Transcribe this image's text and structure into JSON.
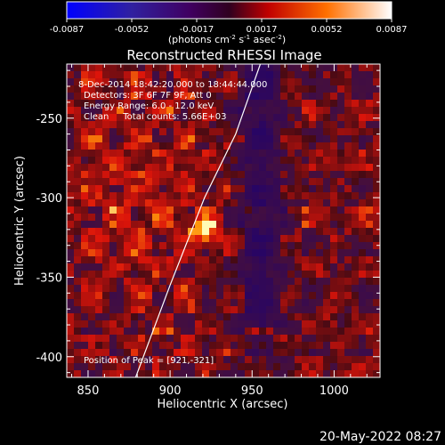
{
  "colorbar": {
    "ticks": [
      "-0.0087",
      "-0.0052",
      "-0.0017",
      "0.0017",
      "0.0052",
      "0.0087"
    ],
    "units_html": "(photons cm<tspan baseline-shift='super' font-size='7'>-2</tspan> s<tspan baseline-shift='super' font-size='7'>-1</tspan> asec<tspan baseline-shift='super' font-size='7'>-2</tspan>)"
  },
  "chart_data": {
    "type": "heatmap",
    "title": "Reconstructed RHESSI Image",
    "xlabel": "Heliocentric X (arcsec)",
    "ylabel": "Heliocentric Y (arcsec)",
    "xlim": [
      837,
      1028
    ],
    "ylim": [
      -413,
      -216
    ],
    "x_ticks": [
      850,
      900,
      950,
      1000
    ],
    "y_ticks": [
      -250,
      -300,
      -350,
      -400
    ],
    "colorbar_range": [
      -0.0087,
      0.0087
    ],
    "colorbar_ticks": [
      -0.0087,
      -0.0052,
      -0.0017,
      0.0017,
      0.0052,
      0.0087
    ],
    "peak_position": [
      921,
      -321
    ],
    "limb_curve": [
      [
        879,
        -413
      ],
      [
        900,
        -355
      ],
      [
        921,
        -300
      ],
      [
        940,
        -260
      ],
      [
        955,
        -216
      ]
    ],
    "colors": {
      "map_low": "#3a0e5e",
      "map_mid": "#c01010",
      "map_high": "#ffffc0",
      "curve": "#ffffff"
    }
  },
  "annotations": {
    "line1": "8-Dec-2014 18:42:20.000 to 18:44:44.000",
    "line2": "Detectors: 3F 6F 7F 9F, Att 0",
    "line3": "Energy Range: 6.0 - 12.0 keV",
    "line4": "Clean     Total counts: 5.66E+03",
    "peak": "Position of Peak = [921,-321]"
  },
  "timestamp": "20-May-2022 08:27"
}
